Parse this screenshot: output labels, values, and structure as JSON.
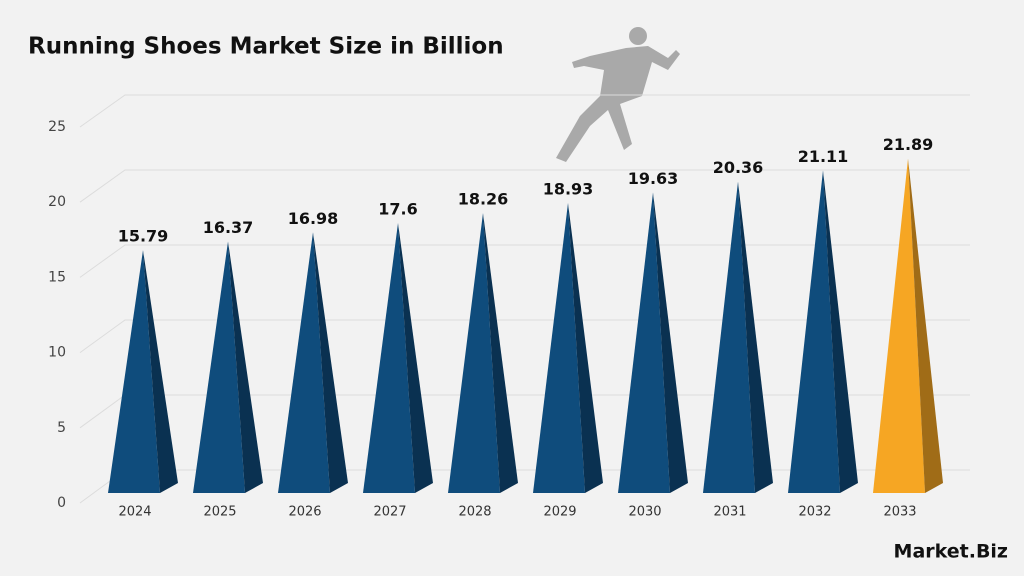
{
  "chart_data": {
    "type": "pyramid",
    "title": "Running Shoes Market Size in Billion",
    "categories": [
      "2024",
      "2025",
      "2026",
      "2027",
      "2028",
      "2029",
      "2030",
      "2031",
      "2032",
      "2033"
    ],
    "values": [
      15.79,
      16.37,
      16.98,
      17.6,
      18.26,
      18.93,
      19.63,
      20.36,
      21.11,
      21.89
    ],
    "colors": [
      "#0f4c7c",
      "#0f4c7c",
      "#0f4c7c",
      "#0f4c7c",
      "#0f4c7c",
      "#0f4c7c",
      "#0f4c7c",
      "#0f4c7c",
      "#0f4c7c",
      "#f6a623"
    ],
    "ylim": [
      0,
      25
    ],
    "yticks": [
      0,
      5,
      10,
      15,
      20,
      25
    ],
    "grid": true
  },
  "brand": "Market.Biz"
}
